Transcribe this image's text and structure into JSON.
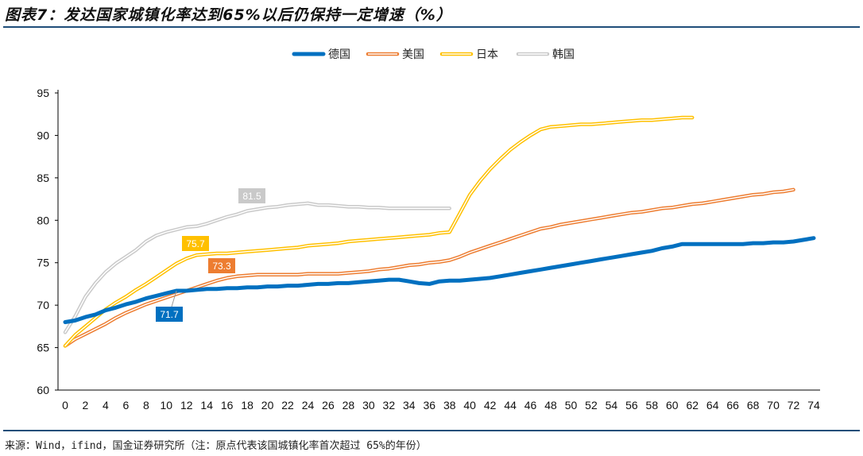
{
  "title": "图表7：发达国家城镇化率达到65%以后仍保持一定增速（%）",
  "source": "来源：Wind，ifind，国金证券研究所（注：原点代表该国城镇化率首次超过 65%的年份）",
  "chart_data": {
    "type": "line",
    "title": "图表7：发达国家城镇化率达到65%以后仍保持一定增速（%）",
    "xlabel": "",
    "ylabel": "",
    "xlim": [
      0,
      74
    ],
    "ylim": [
      60,
      95
    ],
    "yticks": [
      60,
      65,
      70,
      75,
      80,
      85,
      90,
      95
    ],
    "xticks": [
      0,
      2,
      4,
      6,
      8,
      10,
      12,
      14,
      16,
      18,
      20,
      22,
      24,
      26,
      28,
      30,
      32,
      34,
      36,
      38,
      40,
      42,
      44,
      46,
      48,
      50,
      52,
      54,
      56,
      58,
      60,
      62,
      64,
      66,
      68,
      70,
      72,
      74
    ],
    "grid": false,
    "legend_position": "top",
    "series": [
      {
        "name": "德国",
        "color": "#0070C0",
        "style": "solid",
        "values": [
          68.0,
          68.2,
          68.6,
          68.9,
          69.4,
          69.7,
          70.1,
          70.4,
          70.8,
          71.1,
          71.4,
          71.7,
          71.7,
          71.8,
          71.9,
          71.9,
          72.0,
          72.0,
          72.1,
          72.1,
          72.2,
          72.2,
          72.3,
          72.3,
          72.4,
          72.5,
          72.5,
          72.6,
          72.6,
          72.7,
          72.8,
          72.9,
          73.0,
          73.0,
          72.8,
          72.6,
          72.5,
          72.8,
          72.9,
          72.9,
          73.0,
          73.1,
          73.2,
          73.4,
          73.6,
          73.8,
          74.0,
          74.2,
          74.4,
          74.6,
          74.8,
          75.0,
          75.2,
          75.4,
          75.6,
          75.8,
          76.0,
          76.2,
          76.4,
          76.7,
          76.9,
          77.2,
          77.2,
          77.2,
          77.2,
          77.2,
          77.2,
          77.2,
          77.3,
          77.3,
          77.4,
          77.4,
          77.5,
          77.7,
          77.9
        ]
      },
      {
        "name": "美国",
        "color": "#ED7D31",
        "style": "outline",
        "values": [
          65.2,
          66.0,
          66.6,
          67.2,
          67.8,
          68.5,
          69.1,
          69.6,
          70.1,
          70.5,
          70.9,
          71.3,
          71.7,
          72.1,
          72.5,
          72.9,
          73.2,
          73.4,
          73.5,
          73.6,
          73.6,
          73.6,
          73.6,
          73.6,
          73.7,
          73.7,
          73.7,
          73.7,
          73.8,
          73.9,
          74.0,
          74.2,
          74.3,
          74.5,
          74.7,
          74.8,
          75.0,
          75.1,
          75.3,
          75.7,
          76.2,
          76.6,
          77.0,
          77.4,
          77.8,
          78.2,
          78.6,
          79.0,
          79.2,
          79.5,
          79.7,
          79.9,
          80.1,
          80.3,
          80.5,
          80.7,
          80.9,
          81.0,
          81.2,
          81.4,
          81.5,
          81.7,
          81.9,
          82.0,
          82.2,
          82.4,
          82.6,
          82.8,
          83.0,
          83.1,
          83.3,
          83.4,
          83.6
        ]
      },
      {
        "name": "日本",
        "color": "#FFC000",
        "style": "outline",
        "values": [
          65.2,
          66.5,
          67.5,
          68.5,
          69.5,
          70.3,
          71.0,
          71.8,
          72.5,
          73.3,
          74.1,
          74.9,
          75.5,
          75.9,
          76.0,
          76.1,
          76.1,
          76.2,
          76.3,
          76.4,
          76.5,
          76.6,
          76.7,
          76.8,
          77.0,
          77.1,
          77.2,
          77.3,
          77.5,
          77.6,
          77.7,
          77.8,
          77.9,
          78.0,
          78.1,
          78.2,
          78.3,
          78.5,
          78.6,
          80.8,
          83.0,
          84.6,
          86.0,
          87.2,
          88.3,
          89.2,
          90.0,
          90.7,
          91.0,
          91.1,
          91.2,
          91.3,
          91.3,
          91.4,
          91.5,
          91.6,
          91.7,
          91.8,
          91.8,
          91.9,
          92.0,
          92.1,
          92.1
        ]
      },
      {
        "name": "韩国",
        "color": "#C9C9C9",
        "style": "outline",
        "values": [
          66.8,
          68.7,
          71.0,
          72.6,
          73.9,
          74.9,
          75.7,
          76.5,
          77.5,
          78.2,
          78.6,
          78.9,
          79.2,
          79.3,
          79.6,
          80.0,
          80.4,
          80.7,
          81.1,
          81.3,
          81.5,
          81.6,
          81.8,
          81.9,
          82.0,
          81.8,
          81.8,
          81.7,
          81.6,
          81.6,
          81.5,
          81.5,
          81.4,
          81.4,
          81.4,
          81.4,
          81.4,
          81.4,
          81.4
        ]
      }
    ],
    "annotations": [
      {
        "text": "81.5",
        "series": "韩国",
        "color": "#C9C9C9"
      },
      {
        "text": "75.7",
        "series": "日本",
        "color": "#FFC000"
      },
      {
        "text": "73.3",
        "series": "美国",
        "color": "#ED7D31"
      },
      {
        "text": "71.7",
        "series": "德国",
        "color": "#0070C0"
      }
    ]
  }
}
